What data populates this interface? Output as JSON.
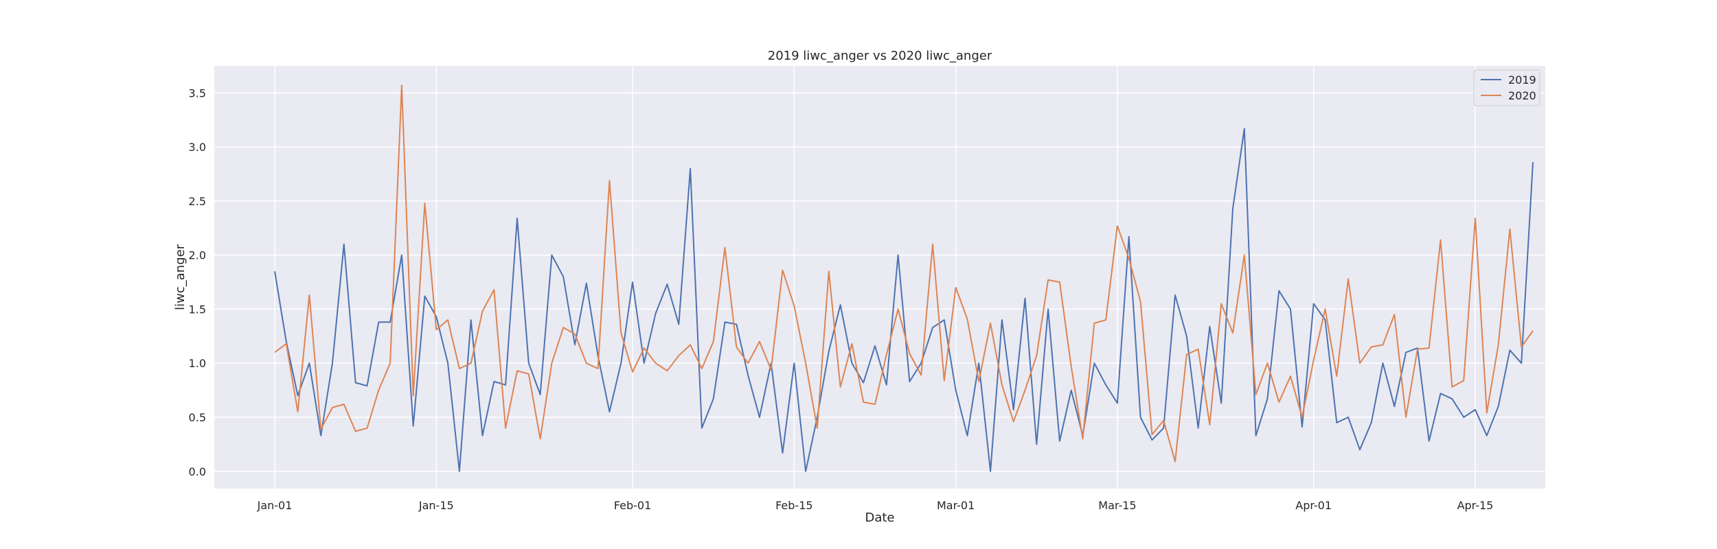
{
  "chart_data": {
    "type": "line",
    "title": "2019 liwc_anger vs 2020 liwc_anger",
    "xlabel": "Date",
    "ylabel": "liwc_anger",
    "x_start": "Jan-01",
    "x_end": "Apr-21",
    "x_ticks": [
      "Jan-01",
      "Jan-15",
      "Feb-01",
      "Feb-15",
      "Mar-01",
      "Mar-15",
      "Apr-01",
      "Apr-15"
    ],
    "y_ticks": [
      "0.0",
      "0.5",
      "1.0",
      "1.5",
      "2.0",
      "2.5",
      "3.0",
      "3.5"
    ],
    "ylim": [
      -0.16,
      3.75
    ],
    "grid": true,
    "legend_position": "top-right",
    "series": [
      {
        "name": "2019",
        "color": "#4c72b0",
        "values": [
          1.85,
          1.2,
          0.7,
          1.0,
          0.33,
          1.0,
          2.1,
          0.82,
          0.79,
          1.38,
          1.38,
          2.0,
          0.42,
          1.62,
          1.43,
          1.0,
          0.0,
          1.4,
          0.33,
          0.83,
          0.8,
          2.34,
          1.0,
          0.71,
          2.0,
          1.8,
          1.17,
          1.74,
          1.07,
          0.55,
          1.0,
          1.75,
          1.0,
          1.46,
          1.73,
          1.36,
          2.8,
          0.4,
          0.67,
          1.38,
          1.36,
          0.89,
          0.5,
          1.0,
          0.17,
          1.0,
          0.0,
          0.5,
          1.11,
          1.54,
          1.0,
          0.82,
          1.16,
          0.8,
          2.0,
          0.83,
          1.0,
          1.33,
          1.4,
          0.75,
          0.33,
          1.0,
          0.0,
          1.4,
          0.57,
          1.6,
          0.25,
          1.5,
          0.28,
          0.75,
          0.33,
          1.0,
          0.8,
          0.63,
          2.17,
          0.5,
          0.29,
          0.4,
          1.63,
          1.25,
          0.4,
          1.34,
          0.63,
          2.43,
          3.17,
          0.33,
          0.67,
          1.67,
          1.5,
          0.41,
          1.55,
          1.4,
          0.45,
          0.5,
          0.2,
          0.45,
          1.0,
          0.6,
          1.1,
          1.14,
          0.28,
          0.72,
          0.67,
          0.5,
          0.57,
          0.33,
          0.6,
          1.12,
          1.0,
          2.86
        ]
      },
      {
        "name": "2020",
        "color": "#dd8452",
        "values": [
          1.1,
          1.18,
          0.55,
          1.63,
          0.39,
          0.59,
          0.62,
          0.37,
          0.4,
          0.75,
          1.0,
          3.57,
          0.7,
          2.48,
          1.31,
          1.4,
          0.95,
          1.0,
          1.48,
          1.68,
          0.4,
          0.93,
          0.9,
          0.3,
          1.0,
          1.33,
          1.27,
          1.0,
          0.95,
          2.69,
          1.28,
          0.92,
          1.14,
          1.0,
          0.93,
          1.07,
          1.17,
          0.95,
          1.2,
          2.07,
          1.15,
          1.0,
          1.2,
          0.94,
          1.86,
          1.53,
          1.0,
          0.4,
          1.85,
          0.78,
          1.18,
          0.64,
          0.62,
          1.08,
          1.5,
          1.09,
          0.89,
          2.1,
          0.84,
          1.7,
          1.41,
          0.83,
          1.37,
          0.8,
          0.46,
          0.75,
          1.07,
          1.77,
          1.75,
          0.97,
          0.3,
          1.37,
          1.4,
          2.27,
          1.97,
          1.57,
          0.34,
          0.47,
          0.09,
          1.08,
          1.13,
          0.43,
          1.55,
          1.28,
          2.0,
          0.71,
          1.0,
          0.64,
          0.88,
          0.5,
          1.03,
          1.5,
          0.88,
          1.78,
          1.0,
          1.15,
          1.17,
          1.45,
          0.5,
          1.13,
          1.14,
          2.14,
          0.78,
          0.84,
          2.34,
          0.54,
          1.17,
          2.24,
          1.15,
          1.3
        ]
      }
    ]
  }
}
